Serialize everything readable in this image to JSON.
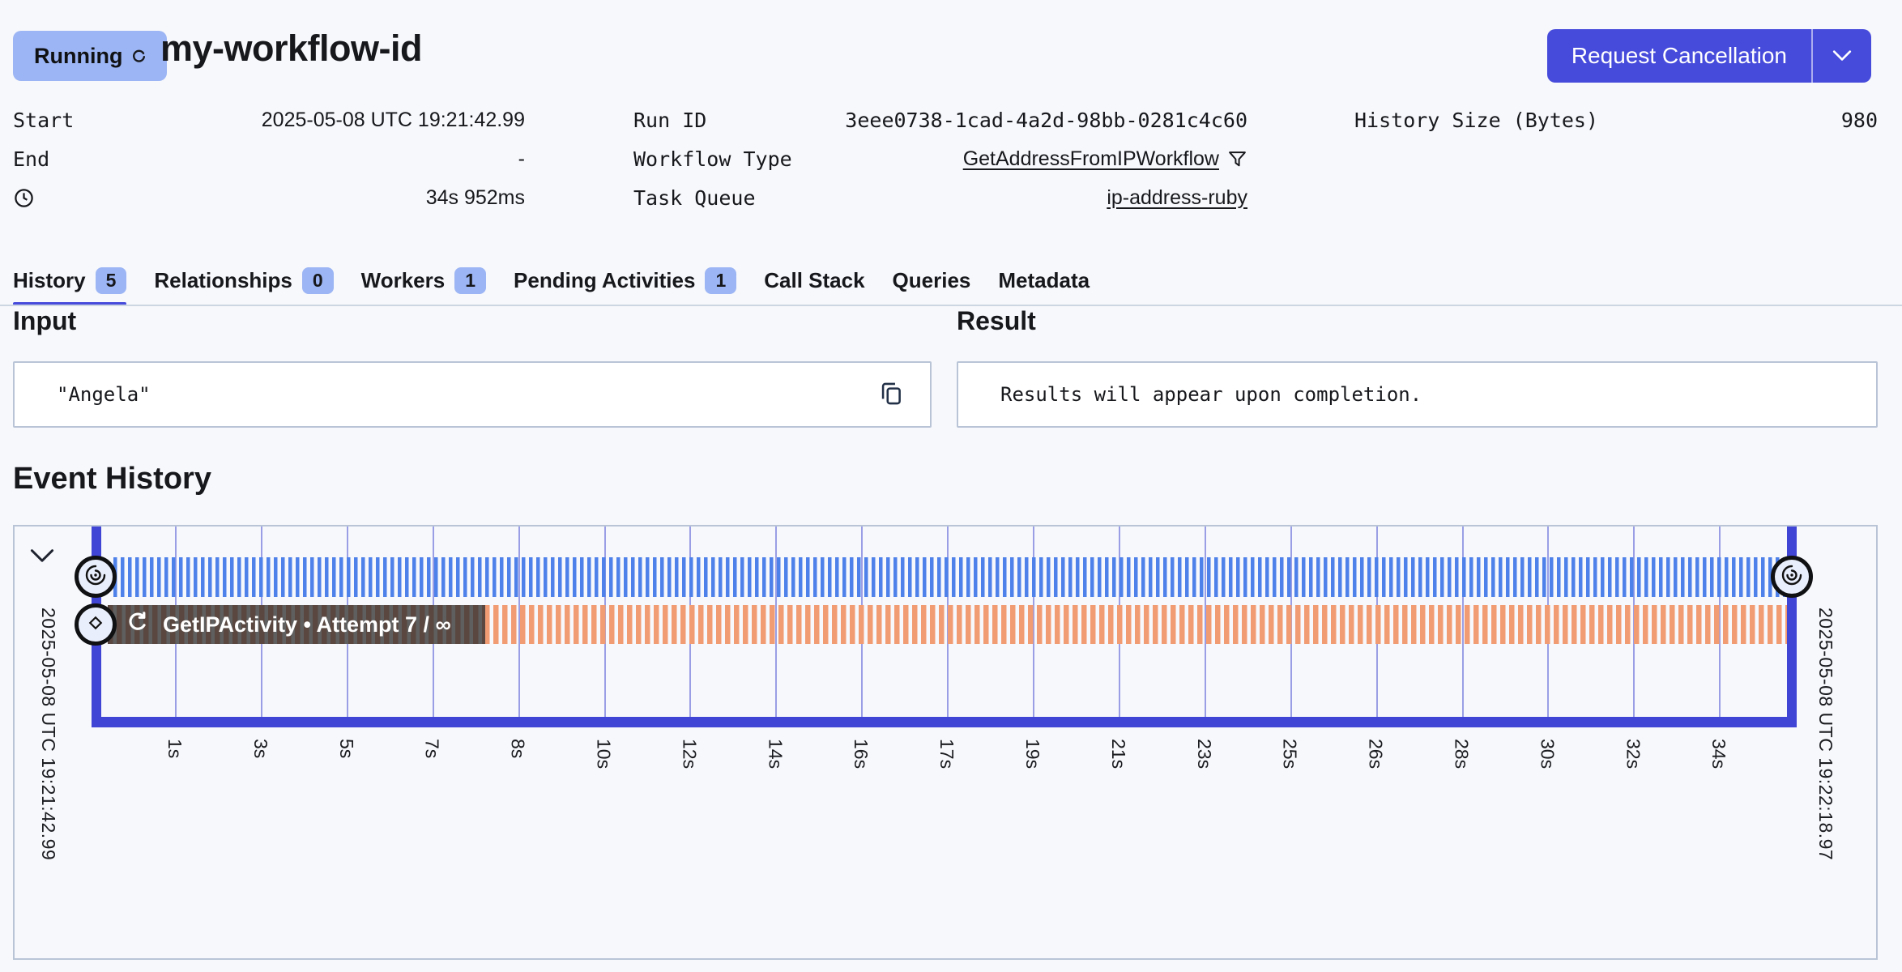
{
  "colors": {
    "accent_indigo": "#474bdb",
    "badge_blue": "#9cb5f4",
    "timeline_frame": "#4145d5",
    "gridline": "#8a8fe0",
    "bar_blue": "#4e81e9",
    "bar_orange": "#f29c74",
    "chip_brown": "#594740",
    "chip_gray": "#5f5f5f",
    "box_border": "#b9c4d7",
    "divider": "#ccd5e2",
    "chart_bg": "#f7f8fc"
  },
  "header": {
    "status_label": "Running",
    "title": "my-workflow-id",
    "cancel_label": "Request Cancellation"
  },
  "meta": {
    "columns": [
      {
        "rows": [
          {
            "label": "Start",
            "value": "2025-05-08 UTC 19:21:42.99",
            "value_style": "sans"
          },
          {
            "label": "End",
            "value": "-",
            "value_style": "sans"
          },
          {
            "icon": "clock",
            "label": "",
            "value": "34s 952ms",
            "value_style": "sans"
          }
        ]
      },
      {
        "rows": [
          {
            "label": "Run ID",
            "value": "3eee0738-1cad-4a2d-98bb-0281c4c60",
            "value_style": "mono"
          },
          {
            "label": "Workflow Type",
            "value": "GetAddressFromIPWorkflow",
            "value_style": "link",
            "filter_icon": true
          },
          {
            "label": "Task Queue",
            "value": "ip-address-ruby",
            "value_style": "link"
          }
        ]
      },
      {
        "rows": [
          {
            "label": "History Size (Bytes)",
            "value": "980",
            "value_style": "mono"
          }
        ]
      }
    ]
  },
  "tabs": [
    {
      "label": "History",
      "count": "5",
      "active": true
    },
    {
      "label": "Relationships",
      "count": "0"
    },
    {
      "label": "Workers",
      "count": "1"
    },
    {
      "label": "Pending Activities",
      "count": "1"
    },
    {
      "label": "Call Stack"
    },
    {
      "label": "Queries"
    },
    {
      "label": "Metadata"
    }
  ],
  "panels": {
    "input_title": "Input",
    "input_value": "\"Angela\"",
    "result_title": "Result",
    "result_placeholder": "Results will appear upon completion."
  },
  "timeline": {
    "section_title": "Event History",
    "range_start": "2025-05-08 UTC 19:21:42.99",
    "range_end": "2025-05-08 UTC 19:22:18.97",
    "activity_chip": "GetIPActivity • Attempt 7 / ∞",
    "tick_labels": [
      "1s",
      "3s",
      "5s",
      "7s",
      "8s",
      "10s",
      "12s",
      "14s",
      "16s",
      "17s",
      "19s",
      "21s",
      "23s",
      "25s",
      "26s",
      "28s",
      "30s",
      "32s",
      "34s"
    ]
  }
}
